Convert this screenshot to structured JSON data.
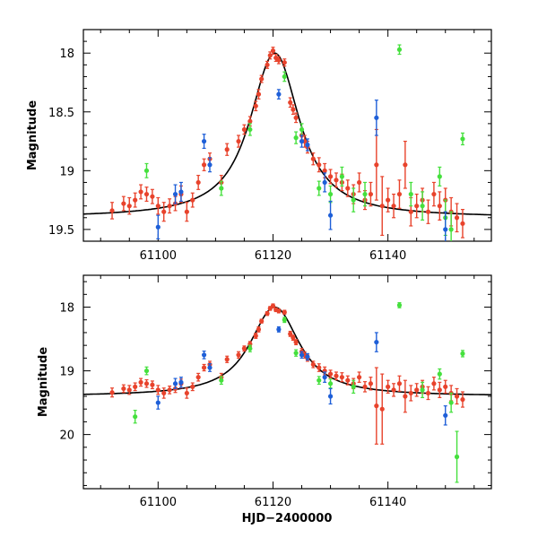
{
  "chart_data": [
    {
      "type": "scatter",
      "panel": "top",
      "ylabel": "Magnitude",
      "xlabel": "",
      "xlim": [
        61087,
        61158
      ],
      "ylim": [
        19.6,
        17.8
      ],
      "xticks": [
        61100,
        61120,
        61140
      ],
      "xtick_labels": [
        "61100",
        "61120",
        "61140"
      ],
      "yticks": [
        18,
        18.5,
        19,
        19.5
      ],
      "ytick_labels": [
        "18",
        "18.5",
        "19",
        "19.5"
      ],
      "model_curve": {
        "t0": 61120.3,
        "peak_mag": 18.0,
        "base_mag": 19.4,
        "width_days": 4.2
      },
      "series": [
        {
          "name": "red",
          "color": "#e8432c",
          "points": [
            [
              61092,
              19.34,
              0.07
            ],
            [
              61094,
              19.28,
              0.06
            ],
            [
              61095,
              19.3,
              0.07
            ],
            [
              61096,
              19.25,
              0.06
            ],
            [
              61097,
              19.18,
              0.06
            ],
            [
              61098,
              19.2,
              0.06
            ],
            [
              61099,
              19.22,
              0.06
            ],
            [
              61100,
              19.3,
              0.07
            ],
            [
              61101,
              19.35,
              0.08
            ],
            [
              61102,
              19.3,
              0.06
            ],
            [
              61103,
              19.28,
              0.06
            ],
            [
              61104,
              19.2,
              0.07
            ],
            [
              61105,
              19.35,
              0.08
            ],
            [
              61106,
              19.25,
              0.06
            ],
            [
              61107,
              19.1,
              0.06
            ],
            [
              61108,
              18.95,
              0.05
            ],
            [
              61109,
              18.9,
              0.05
            ],
            [
              61111,
              19.1,
              0.06
            ],
            [
              61112,
              18.82,
              0.05
            ],
            [
              61114,
              18.75,
              0.05
            ],
            [
              61115,
              18.65,
              0.04
            ],
            [
              61116,
              18.58,
              0.04
            ],
            [
              61117,
              18.45,
              0.04
            ],
            [
              61117.5,
              18.35,
              0.04
            ],
            [
              61118,
              18.22,
              0.03
            ],
            [
              61119,
              18.1,
              0.03
            ],
            [
              61119.5,
              18.02,
              0.03
            ],
            [
              61120,
              17.98,
              0.03
            ],
            [
              61120.5,
              18.04,
              0.03
            ],
            [
              61121,
              18.06,
              0.03
            ],
            [
              61122,
              18.08,
              0.03
            ],
            [
              61123,
              18.42,
              0.04
            ],
            [
              61123.5,
              18.48,
              0.04
            ],
            [
              61124,
              18.55,
              0.04
            ],
            [
              61125,
              18.7,
              0.05
            ],
            [
              61125.5,
              18.75,
              0.05
            ],
            [
              61126,
              18.8,
              0.05
            ],
            [
              61127,
              18.9,
              0.05
            ],
            [
              61128,
              18.95,
              0.06
            ],
            [
              61129,
              19.0,
              0.06
            ],
            [
              61130,
              19.05,
              0.06
            ],
            [
              61131,
              19.08,
              0.06
            ],
            [
              61132,
              19.1,
              0.07
            ],
            [
              61133,
              19.15,
              0.07
            ],
            [
              61134,
              19.2,
              0.08
            ],
            [
              61135,
              19.1,
              0.08
            ],
            [
              61136,
              19.25,
              0.08
            ],
            [
              61137,
              19.2,
              0.1
            ],
            [
              61138,
              18.95,
              0.3
            ],
            [
              61139,
              19.3,
              0.25
            ],
            [
              61140,
              19.25,
              0.1
            ],
            [
              61141,
              19.3,
              0.1
            ],
            [
              61142,
              19.2,
              0.12
            ],
            [
              61143,
              18.95,
              0.2
            ],
            [
              61144,
              19.35,
              0.12
            ],
            [
              61145,
              19.3,
              0.1
            ],
            [
              61146,
              19.25,
              0.1
            ],
            [
              61147,
              19.35,
              0.1
            ],
            [
              61148,
              19.2,
              0.1
            ],
            [
              61149,
              19.3,
              0.12
            ],
            [
              61150,
              19.25,
              0.1
            ],
            [
              61151,
              19.35,
              0.12
            ],
            [
              61152,
              19.4,
              0.12
            ],
            [
              61153,
              19.45,
              0.12
            ]
          ]
        },
        {
          "name": "green",
          "color": "#45e03d",
          "points": [
            [
              61098,
              19.0,
              0.06
            ],
            [
              61111,
              19.15,
              0.06
            ],
            [
              61116,
              18.65,
              0.05
            ],
            [
              61122,
              18.2,
              0.04
            ],
            [
              61124,
              18.72,
              0.05
            ],
            [
              61125,
              18.65,
              0.05
            ],
            [
              61128,
              19.15,
              0.06
            ],
            [
              61130,
              19.2,
              0.07
            ],
            [
              61132,
              19.05,
              0.08
            ],
            [
              61134,
              19.25,
              0.1
            ],
            [
              61136,
              19.2,
              0.1
            ],
            [
              61142,
              17.97,
              0.04
            ],
            [
              61144,
              19.2,
              0.1
            ],
            [
              61146,
              19.3,
              0.12
            ],
            [
              61149,
              19.05,
              0.08
            ],
            [
              61150,
              19.4,
              0.15
            ],
            [
              61151,
              19.5,
              0.15
            ],
            [
              61153,
              18.73,
              0.05
            ]
          ]
        },
        {
          "name": "blue",
          "color": "#1e5fd8",
          "points": [
            [
              61100,
              19.48,
              0.1
            ],
            [
              61103,
              19.2,
              0.08
            ],
            [
              61104,
              19.18,
              0.08
            ],
            [
              61108,
              18.75,
              0.06
            ],
            [
              61109,
              18.95,
              0.06
            ],
            [
              61121,
              18.35,
              0.04
            ],
            [
              61125,
              18.75,
              0.05
            ],
            [
              61126,
              18.78,
              0.05
            ],
            [
              61129,
              19.1,
              0.08
            ],
            [
              61130,
              19.38,
              0.12
            ],
            [
              61138,
              18.55,
              0.15
            ],
            [
              61150,
              19.5,
              0.15
            ]
          ]
        }
      ]
    },
    {
      "type": "scatter",
      "panel": "bottom",
      "ylabel": "Magnitude",
      "xlabel": "HJD−2400000",
      "xlim": [
        61087,
        61158
      ],
      "ylim": [
        20.85,
        17.5
      ],
      "xticks": [
        61100,
        61120,
        61140
      ],
      "xtick_labels": [
        "61100",
        "61120",
        "61140"
      ],
      "yticks": [
        18,
        19,
        20
      ],
      "ytick_labels": [
        "18",
        "19",
        "20"
      ],
      "model_curve": {
        "t0": 61120.3,
        "peak_mag": 18.0,
        "base_mag": 19.4,
        "width_days": 4.2
      },
      "series": [
        {
          "name": "red",
          "color": "#e8432c",
          "points": [
            [
              61092,
              19.34,
              0.07
            ],
            [
              61094,
              19.28,
              0.06
            ],
            [
              61095,
              19.3,
              0.07
            ],
            [
              61096,
              19.25,
              0.06
            ],
            [
              61097,
              19.18,
              0.06
            ],
            [
              61098,
              19.2,
              0.06
            ],
            [
              61099,
              19.22,
              0.06
            ],
            [
              61100,
              19.3,
              0.07
            ],
            [
              61101,
              19.35,
              0.08
            ],
            [
              61102,
              19.3,
              0.06
            ],
            [
              61103,
              19.28,
              0.06
            ],
            [
              61104,
              19.2,
              0.07
            ],
            [
              61105,
              19.35,
              0.08
            ],
            [
              61106,
              19.25,
              0.06
            ],
            [
              61107,
              19.1,
              0.06
            ],
            [
              61108,
              18.95,
              0.05
            ],
            [
              61109,
              18.9,
              0.05
            ],
            [
              61111,
              19.1,
              0.06
            ],
            [
              61112,
              18.82,
              0.05
            ],
            [
              61114,
              18.75,
              0.05
            ],
            [
              61115,
              18.65,
              0.04
            ],
            [
              61116,
              18.58,
              0.04
            ],
            [
              61117,
              18.45,
              0.04
            ],
            [
              61117.5,
              18.35,
              0.04
            ],
            [
              61118,
              18.22,
              0.03
            ],
            [
              61119,
              18.1,
              0.03
            ],
            [
              61119.5,
              18.02,
              0.03
            ],
            [
              61120,
              17.98,
              0.03
            ],
            [
              61120.5,
              18.04,
              0.03
            ],
            [
              61121,
              18.06,
              0.03
            ],
            [
              61122,
              18.08,
              0.03
            ],
            [
              61123,
              18.42,
              0.04
            ],
            [
              61123.5,
              18.48,
              0.04
            ],
            [
              61124,
              18.55,
              0.04
            ],
            [
              61125,
              18.7,
              0.05
            ],
            [
              61125.5,
              18.75,
              0.05
            ],
            [
              61126,
              18.8,
              0.05
            ],
            [
              61127,
              18.9,
              0.05
            ],
            [
              61128,
              18.95,
              0.06
            ],
            [
              61129,
              19.0,
              0.06
            ],
            [
              61130,
              19.05,
              0.06
            ],
            [
              61131,
              19.08,
              0.06
            ],
            [
              61132,
              19.1,
              0.07
            ],
            [
              61133,
              19.15,
              0.07
            ],
            [
              61134,
              19.2,
              0.08
            ],
            [
              61135,
              19.1,
              0.08
            ],
            [
              61136,
              19.25,
              0.08
            ],
            [
              61137,
              19.2,
              0.1
            ],
            [
              61138,
              19.55,
              0.6
            ],
            [
              61139,
              19.6,
              0.55
            ],
            [
              61140,
              19.25,
              0.1
            ],
            [
              61141,
              19.3,
              0.1
            ],
            [
              61142,
              19.2,
              0.12
            ],
            [
              61143,
              19.4,
              0.25
            ],
            [
              61144,
              19.35,
              0.12
            ],
            [
              61145,
              19.3,
              0.1
            ],
            [
              61146,
              19.25,
              0.1
            ],
            [
              61147,
              19.35,
              0.1
            ],
            [
              61148,
              19.2,
              0.1
            ],
            [
              61149,
              19.3,
              0.12
            ],
            [
              61150,
              19.25,
              0.1
            ],
            [
              61151,
              19.35,
              0.12
            ],
            [
              61152,
              19.4,
              0.12
            ],
            [
              61153,
              19.45,
              0.12
            ]
          ]
        },
        {
          "name": "green",
          "color": "#45e03d",
          "points": [
            [
              61096,
              19.72,
              0.1
            ],
            [
              61098,
              19.0,
              0.06
            ],
            [
              61111,
              19.15,
              0.06
            ],
            [
              61116,
              18.65,
              0.05
            ],
            [
              61122,
              18.2,
              0.04
            ],
            [
              61124,
              18.72,
              0.05
            ],
            [
              61128,
              19.15,
              0.06
            ],
            [
              61130,
              19.2,
              0.07
            ],
            [
              61134,
              19.25,
              0.1
            ],
            [
              61142,
              17.97,
              0.04
            ],
            [
              61146,
              19.3,
              0.12
            ],
            [
              61149,
              19.05,
              0.08
            ],
            [
              61151,
              19.5,
              0.15
            ],
            [
              61152,
              20.35,
              0.4
            ],
            [
              61153,
              18.73,
              0.05
            ]
          ]
        },
        {
          "name": "blue",
          "color": "#1e5fd8",
          "points": [
            [
              61100,
              19.5,
              0.1
            ],
            [
              61103,
              19.2,
              0.08
            ],
            [
              61104,
              19.18,
              0.08
            ],
            [
              61108,
              18.75,
              0.06
            ],
            [
              61109,
              18.95,
              0.06
            ],
            [
              61121,
              18.35,
              0.04
            ],
            [
              61125,
              18.75,
              0.05
            ],
            [
              61126,
              18.78,
              0.05
            ],
            [
              61129,
              19.1,
              0.08
            ],
            [
              61130,
              19.4,
              0.12
            ],
            [
              61138,
              18.55,
              0.15
            ],
            [
              61150,
              19.7,
              0.15
            ]
          ]
        }
      ]
    }
  ]
}
